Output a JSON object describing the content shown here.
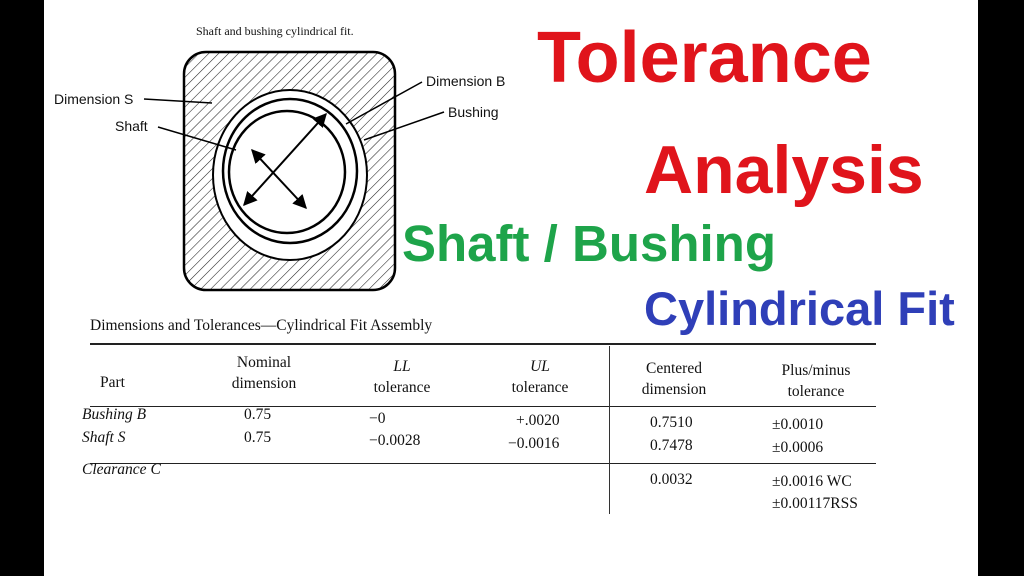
{
  "figure": {
    "caption": "Shaft and bushing cylindrical fit.",
    "callouts": {
      "dimension_b": "Dimension B",
      "bushing": "Bushing",
      "dimension_s": "Dimension S",
      "shaft": "Shaft"
    }
  },
  "headline": {
    "line1": "Tolerance",
    "line2": "Analysis",
    "line3": "Shaft / Bushing",
    "line4": "Cylindrical Fit"
  },
  "colors": {
    "headline_red": "#e0141b",
    "headline_green": "#1ea44a",
    "headline_blue": "#2f3fb8"
  },
  "table": {
    "title": "Dimensions and Tolerances—Cylindrical Fit Assembly",
    "headers": {
      "part": "Part",
      "nominal_1": "Nominal",
      "nominal_2": "dimension",
      "ll_1": "LL",
      "ll_2": "tolerance",
      "ul_1": "UL",
      "ul_2": "tolerance",
      "centered_1": "Centered",
      "centered_2": "dimension",
      "pm_1": "Plus/minus",
      "pm_2": "tolerance"
    },
    "rows": [
      {
        "part": "Bushing B",
        "nominal": "0.75",
        "ll": "−0",
        "ul": "+.0020",
        "centered": "0.7510",
        "pm": "±0.0010"
      },
      {
        "part": "Shaft S",
        "nominal": "0.75",
        "ll": "−0.0028",
        "ul": "−0.0016",
        "centered": "0.7478",
        "pm": "±0.0006"
      }
    ],
    "clearance": {
      "part": "Clearance C",
      "centered": "0.0032",
      "pm_wc": "±0.0016 WC",
      "pm_rss": "±0.00117RSS"
    }
  }
}
